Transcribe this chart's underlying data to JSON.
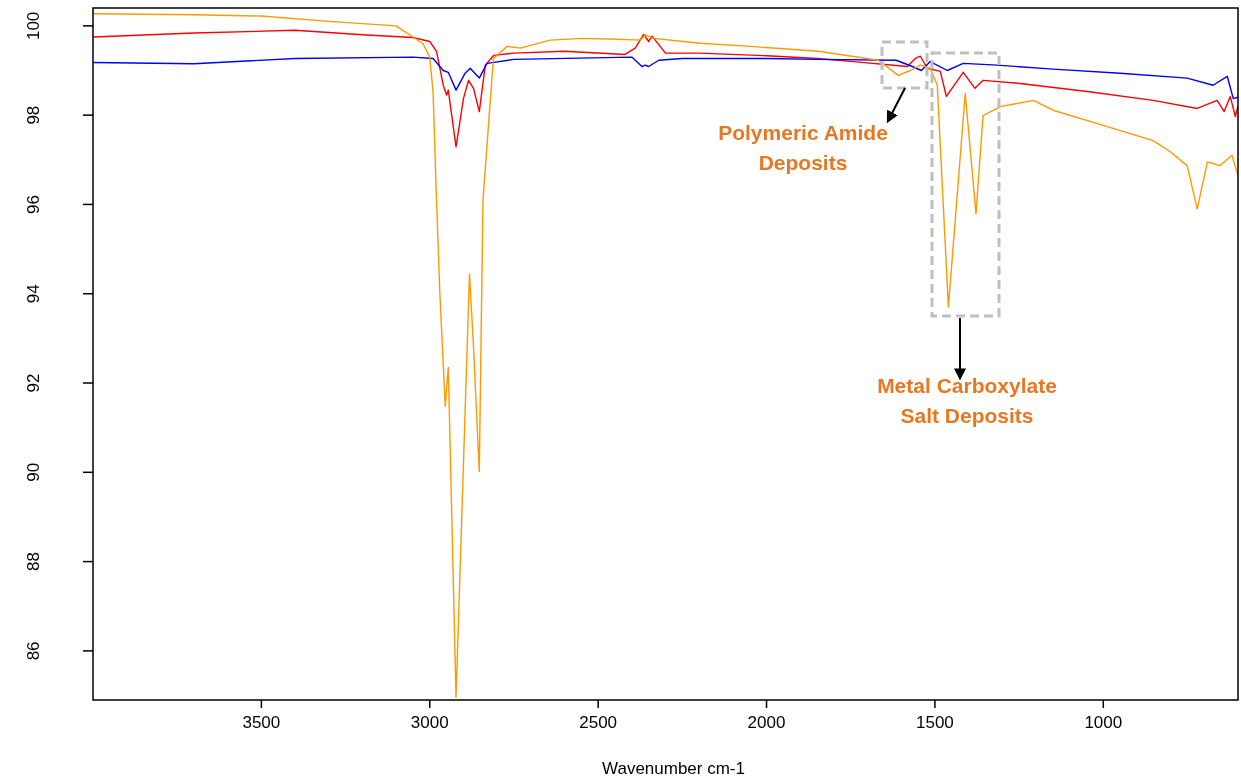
{
  "chart_data": {
    "type": "line",
    "xlabel": "Wavenumber cm-1",
    "xlim": [
      4000,
      600
    ],
    "xticks": [
      3500,
      3000,
      2500,
      2000,
      1500,
      1000
    ],
    "ylim": [
      84.9,
      100.4
    ],
    "yticks": [
      86,
      88,
      90,
      92,
      94,
      96,
      98,
      100
    ],
    "grid": false,
    "line_style": "solid",
    "marker": "none",
    "series": [
      {
        "color": "#ff0000",
        "x": [
          4000,
          3700,
          3400,
          3200,
          3050,
          3000,
          2980,
          2960,
          2950,
          2945,
          2922,
          2900,
          2885,
          2870,
          2853,
          2835,
          2810,
          2750,
          2600,
          2420,
          2390,
          2365,
          2350,
          2340,
          2300,
          2200,
          2000,
          1850,
          1742,
          1582,
          1558,
          1543,
          1523,
          1484,
          1466,
          1416,
          1381,
          1357,
          1247,
          1048,
          852,
          721,
          662,
          641,
          623,
          608,
          600
        ],
        "values": [
          99.75,
          99.84,
          99.9,
          99.8,
          99.74,
          99.65,
          99.43,
          98.67,
          98.45,
          98.56,
          97.29,
          98.37,
          98.78,
          98.6,
          98.08,
          99.12,
          99.34,
          99.39,
          99.43,
          99.36,
          99.5,
          99.81,
          99.65,
          99.77,
          99.39,
          99.39,
          99.33,
          99.27,
          99.2,
          99.09,
          99.27,
          99.32,
          99.05,
          98.98,
          98.42,
          98.96,
          98.6,
          98.78,
          98.71,
          98.53,
          98.33,
          98.15,
          98.33,
          98.08,
          98.42,
          97.97,
          98.2
        ]
      },
      {
        "color": "#0000ff",
        "x": [
          4000,
          3700,
          3400,
          3050,
          2990,
          2960,
          2945,
          2922,
          2895,
          2880,
          2853,
          2830,
          2750,
          2400,
          2370,
          2360,
          2350,
          2320,
          2250,
          2000,
          1846,
          1615,
          1567,
          1540,
          1514,
          1463,
          1416,
          1315,
          1149,
          950,
          751,
          674,
          632,
          614,
          600
        ],
        "values": [
          99.18,
          99.15,
          99.27,
          99.3,
          99.27,
          99.0,
          98.96,
          98.56,
          98.94,
          99.05,
          98.83,
          99.16,
          99.25,
          99.3,
          99.09,
          99.12,
          99.09,
          99.23,
          99.27,
          99.27,
          99.25,
          99.23,
          99.09,
          99.0,
          99.2,
          99.0,
          99.16,
          99.12,
          99.03,
          98.94,
          98.83,
          98.67,
          98.87,
          98.37,
          98.4
        ]
      },
      {
        "color": "#ff9900",
        "x": [
          4000,
          3700,
          3500,
          3300,
          3200,
          3100,
          3050,
          3020,
          3000,
          2990,
          2980,
          2970,
          2954,
          2945,
          2922,
          2882,
          2870,
          2853,
          2842,
          2811,
          2770,
          2731,
          2642,
          2544,
          2443,
          2375,
          2360,
          2336,
          2197,
          2048,
          1846,
          1668,
          1609,
          1573,
          1543,
          1514,
          1493,
          1460,
          1410,
          1378,
          1357,
          1306,
          1208,
          1149,
          1000,
          852,
          801,
          751,
          721,
          691,
          653,
          618,
          600
        ],
        "values": [
          100.27,
          100.25,
          100.22,
          100.1,
          100.05,
          100.0,
          99.75,
          99.6,
          99.3,
          98.5,
          96.1,
          94.0,
          91.48,
          92.35,
          84.96,
          94.44,
          92.8,
          90.02,
          96.1,
          99.27,
          99.54,
          99.5,
          99.68,
          99.72,
          99.7,
          99.68,
          99.8,
          99.72,
          99.61,
          99.54,
          99.43,
          99.23,
          98.89,
          99.0,
          99.12,
          99.05,
          98.67,
          93.7,
          98.49,
          95.79,
          97.99,
          98.19,
          98.33,
          98.11,
          97.77,
          97.43,
          97.18,
          96.87,
          95.9,
          96.95,
          96.87,
          97.1,
          96.65
        ]
      }
    ],
    "annotations": [
      "Polymeric Amide\nDeposits",
      "Metal Carboxylate\nSalt Deposits"
    ]
  }
}
